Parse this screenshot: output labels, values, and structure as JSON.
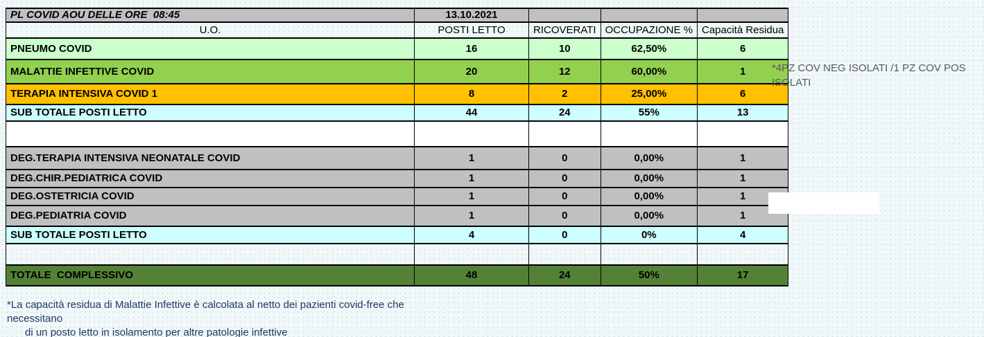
{
  "table": {
    "title": "PL COVID AOU DELLE ORE  08:45",
    "date": "13.10.2021",
    "columns": [
      "U.O.",
      "POSTI LETTO",
      "RICOVERATI",
      "OCCUPAZIONE %",
      "Capacità Residua"
    ],
    "rows": [
      {
        "kind": "dept",
        "bg": "#ccffcc",
        "label": "PNEUMO COVID",
        "values": [
          "16",
          "10",
          "62,50%",
          "6"
        ]
      },
      {
        "kind": "dept",
        "bg": "#92d050",
        "label": "MALATTIE INFETTIVE COVID",
        "values": [
          "20",
          "12",
          "60,00%",
          "1"
        ]
      },
      {
        "kind": "dept",
        "bg": "#ffc000",
        "label": "TERAPIA INTENSIVA COVID 1",
        "values": [
          "8",
          "2",
          "25,00%",
          "6"
        ]
      },
      {
        "kind": "subtotal",
        "bg": "#ccffff",
        "label": "SUB TOTALE POSTI LETTO",
        "values": [
          "44",
          "24",
          "55%",
          "13"
        ]
      },
      {
        "kind": "spacer",
        "bg": "#ffffff",
        "label": "",
        "values": [
          "",
          "",
          "",
          ""
        ]
      },
      {
        "kind": "dept",
        "bg": "#c0c0c0",
        "label": "DEG.TERAPIA INTENSIVA NEONATALE COVID",
        "values": [
          "1",
          "0",
          "0,00%",
          "1"
        ]
      },
      {
        "kind": "dept",
        "bg": "#c0c0c0",
        "label": "DEG.CHIR.PEDIATRICA COVID",
        "values": [
          "1",
          "0",
          "0,00%",
          "1"
        ]
      },
      {
        "kind": "dept",
        "bg": "#c0c0c0",
        "label": "DEG.OSTETRICIA COVID",
        "values": [
          "1",
          "0",
          "0,00%",
          "1"
        ]
      },
      {
        "kind": "dept",
        "bg": "#c0c0c0",
        "label": "DEG.PEDIATRIA COVID",
        "values": [
          "1",
          "0",
          "0,00%",
          "1"
        ]
      },
      {
        "kind": "subtotal",
        "bg": "#ccffff",
        "label": "SUB TOTALE POSTI LETTO",
        "values": [
          "4",
          "0",
          "0%",
          "4"
        ]
      },
      {
        "kind": "spacer",
        "bg": "transparent",
        "label": "",
        "values": [
          "",
          "",
          "",
          ""
        ]
      },
      {
        "kind": "total",
        "bg": "#538135",
        "label": "TOTALE  COMPLESSIVO",
        "values": [
          "48",
          "24",
          "50%",
          "17"
        ]
      }
    ],
    "header_gray": "#c0c0c0"
  },
  "annotations": {
    "right_note": "*4PZ COV NEG ISOLATI /1 PZ COV POS ISOLATI",
    "footnote_line1": "*La capacità residua di Malattie Infettive è calcolata al netto dei pazienti covid-free che",
    "footnote_line2": "necessitano",
    "footnote_line3": "di un posto letto in isolamento per altre patologie infettive"
  }
}
